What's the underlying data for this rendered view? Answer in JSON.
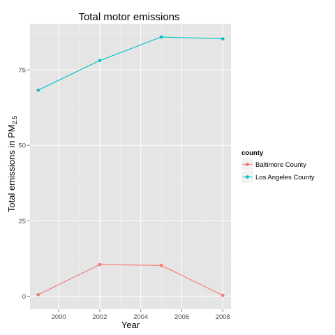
{
  "colors": {
    "panel_background": "#e5e5e5",
    "grid_major": "#ffffff",
    "grid_minor": "#f2f2f2",
    "tick": "#7f7f7f",
    "legend_key_background": "#f2f2f2"
  },
  "chart_data": {
    "type": "line",
    "title": "Total motor emissions",
    "xlabel": "Year",
    "ylabel_main": "Total emissions in PM",
    "ylabel_sub": "2.5",
    "x": [
      1999,
      2002,
      2005,
      2008
    ],
    "x_ticks": [
      2000,
      2002,
      2004,
      2006,
      2008
    ],
    "y_ticks": [
      0,
      25,
      50,
      75
    ],
    "xlim": [
      1998.6,
      2008.4
    ],
    "ylim": [
      -4.3,
      90.3
    ],
    "grid": true,
    "series": [
      {
        "name": "Baltimore County",
        "color": "#f8766d",
        "values": [
          0.5,
          10.5,
          10.2,
          0.3
        ]
      },
      {
        "name": "Los Angeles County",
        "color": "#00bfc4",
        "values": [
          68.3,
          78.1,
          85.9,
          85.3
        ]
      }
    ],
    "legend": {
      "title": "county",
      "position": "right"
    }
  }
}
